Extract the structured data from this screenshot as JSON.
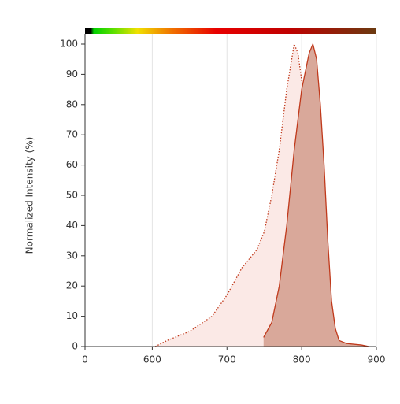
{
  "chart_data": {
    "type": "area",
    "ylabel": "Normalized Intensity (%)",
    "xlim": [
      510,
      900
    ],
    "xticks": [
      {
        "value": 510,
        "label": "0"
      },
      600,
      700,
      800,
      900
    ],
    "ylim": [
      0,
      100
    ],
    "yticks": [
      0,
      10,
      20,
      30,
      40,
      50,
      60,
      70,
      80,
      90,
      100
    ],
    "grid": "x",
    "series": [
      {
        "style": "dotted",
        "color": "#c0391b",
        "fill": "#fbe9e6",
        "x": [
          604,
          620,
          650,
          680,
          700,
          720,
          740,
          750,
          760,
          770,
          780,
          790,
          795,
          800,
          810,
          815,
          823,
          823
        ],
        "values": [
          0,
          2,
          5,
          10,
          17,
          26,
          32,
          38,
          50,
          65,
          85,
          100,
          97,
          88,
          70,
          45,
          30,
          0
        ]
      },
      {
        "style": "solid",
        "color": "#c0391b",
        "fill": "#d9a89a",
        "x": [
          749,
          760,
          770,
          780,
          790,
          800,
          810,
          815,
          820,
          825,
          830,
          835,
          840,
          845,
          850,
          860,
          880,
          890
        ],
        "values": [
          3,
          8,
          20,
          40,
          65,
          85,
          97,
          100,
          95,
          80,
          60,
          35,
          15,
          6,
          2,
          1,
          0.5,
          0
        ]
      }
    ]
  }
}
